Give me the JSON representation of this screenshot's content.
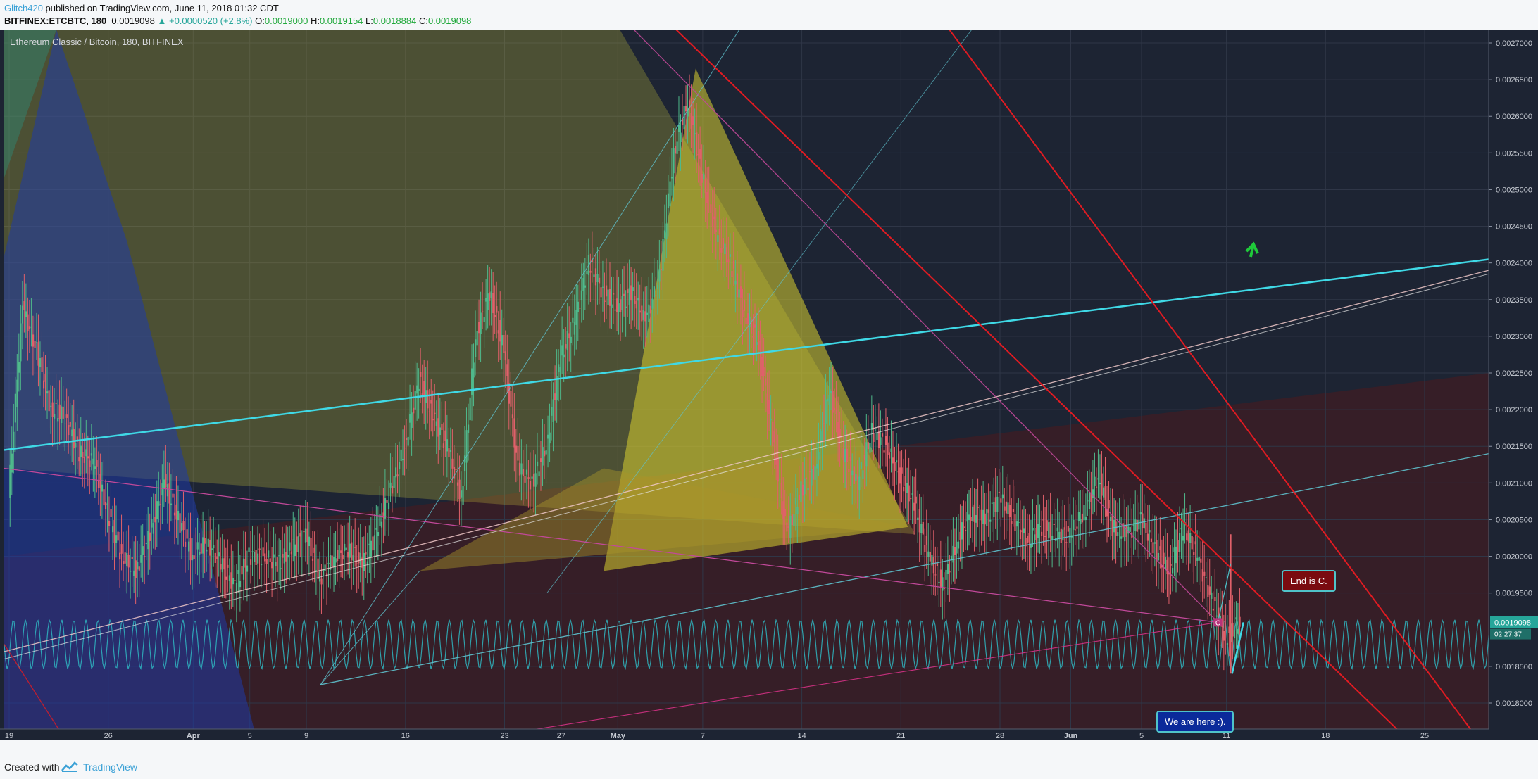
{
  "header": {
    "author": "Glitch420",
    "published_text": " published on TradingView.com, June 11, 2018 01:32 CDT",
    "symbol": "BITFINEX:ETCBTC, 180",
    "last": "0.0019098",
    "change": "▲ +0.0000520 (+2.8%)",
    "o_label": "O:",
    "o": "0.0019000",
    "h_label": "H:",
    "h": "0.0019154",
    "l_label": "L:",
    "l": "0.0018884",
    "c_label": "C:",
    "c": "0.0019098"
  },
  "footer": {
    "created": "Created with",
    "brand": "TradingView"
  },
  "annotations": {
    "end": "End is C.",
    "here": "We are here :).",
    "marker": "C"
  },
  "colors": {
    "background": "#1d2433",
    "up": "#4fb98b",
    "down": "#e0606a",
    "cyan": "#3fd9e6",
    "red": "#e11b22",
    "yellow": "#c9c23a",
    "accent_green": "#26a69a"
  },
  "chart_data": {
    "type": "candlestick",
    "title": "Ethereum Classic / Bitcoin, 180, BITFINEX",
    "ylim": [
      0.00175,
      0.00272
    ],
    "y_ticks": [
      "0.0027000",
      "0.0026500",
      "0.0026000",
      "0.0025500",
      "0.0025000",
      "0.0024500",
      "0.0024000",
      "0.0023500",
      "0.0023000",
      "0.0022500",
      "0.0022000",
      "0.0021500",
      "0.0021000",
      "0.0020500",
      "0.0020000",
      "0.0019500",
      "0.0018500",
      "0.0018000"
    ],
    "y_tick_values": [
      0.0027,
      0.00265,
      0.0026,
      0.00255,
      0.0025,
      0.00245,
      0.0024,
      0.00235,
      0.0023,
      0.00225,
      0.0022,
      0.00215,
      0.0021,
      0.00205,
      0.002,
      0.00195,
      0.00185,
      0.0018
    ],
    "x_ticks": [
      "19",
      "26",
      "Apr",
      "5",
      "9",
      "16",
      "23",
      "27",
      "May",
      "7",
      "14",
      "21",
      "28",
      "Jun",
      "5",
      "11",
      "18",
      "25"
    ],
    "x_tick_days": [
      0,
      7,
      13,
      17,
      21,
      28,
      35,
      39,
      43,
      49,
      56,
      63,
      70,
      75,
      80,
      86,
      93,
      100
    ],
    "last_price_label": "0.0019098",
    "countdown": "02:27:37",
    "price_path": [
      [
        0,
        0.00208
      ],
      [
        1,
        0.00234
      ],
      [
        2,
        0.00228
      ],
      [
        3,
        0.0022
      ],
      [
        4,
        0.00219
      ],
      [
        5,
        0.00214
      ],
      [
        6,
        0.00213
      ],
      [
        7,
        0.00206
      ],
      [
        8,
        0.002
      ],
      [
        9,
        0.00198
      ],
      [
        10,
        0.00203
      ],
      [
        11,
        0.0021
      ],
      [
        12,
        0.00205
      ],
      [
        13,
        0.002
      ],
      [
        14,
        0.00202
      ],
      [
        15,
        0.00199
      ],
      [
        16,
        0.00196
      ],
      [
        17,
        0.002
      ],
      [
        18,
        0.002
      ],
      [
        19,
        0.00199
      ],
      [
        20,
        0.00201
      ],
      [
        21,
        0.00203
      ],
      [
        22,
        0.00197
      ],
      [
        23,
        0.002
      ],
      [
        24,
        0.00201
      ],
      [
        25,
        0.00199
      ],
      [
        26,
        0.00203
      ],
      [
        27,
        0.00209
      ],
      [
        28,
        0.00215
      ],
      [
        29,
        0.00224
      ],
      [
        30,
        0.00219
      ],
      [
        31,
        0.00215
      ],
      [
        32,
        0.00208
      ],
      [
        33,
        0.0023
      ],
      [
        34,
        0.00236
      ],
      [
        35,
        0.00228
      ],
      [
        36,
        0.00212
      ],
      [
        37,
        0.0021
      ],
      [
        38,
        0.00215
      ],
      [
        39,
        0.00227
      ],
      [
        40,
        0.00232
      ],
      [
        41,
        0.0024
      ],
      [
        42,
        0.00236
      ],
      [
        43,
        0.00234
      ],
      [
        44,
        0.00236
      ],
      [
        45,
        0.00232
      ],
      [
        46,
        0.00238
      ],
      [
        47,
        0.00255
      ],
      [
        48,
        0.00262
      ],
      [
        49,
        0.00252
      ],
      [
        50,
        0.00244
      ],
      [
        51,
        0.0024
      ],
      [
        52,
        0.00233
      ],
      [
        53,
        0.00229
      ],
      [
        54,
        0.00216
      ],
      [
        55,
        0.00203
      ],
      [
        56,
        0.00209
      ],
      [
        57,
        0.00212
      ],
      [
        58,
        0.00223
      ],
      [
        59,
        0.00214
      ],
      [
        60,
        0.0021
      ],
      [
        61,
        0.00217
      ],
      [
        62,
        0.00215
      ],
      [
        63,
        0.00211
      ],
      [
        64,
        0.00207
      ],
      [
        65,
        0.002
      ],
      [
        66,
        0.00196
      ],
      [
        67,
        0.00202
      ],
      [
        68,
        0.00206
      ],
      [
        69,
        0.00205
      ],
      [
        70,
        0.00208
      ],
      [
        71,
        0.00205
      ],
      [
        72,
        0.00202
      ],
      [
        73,
        0.00204
      ],
      [
        74,
        0.00203
      ],
      [
        75,
        0.00203
      ],
      [
        76,
        0.00206
      ],
      [
        77,
        0.00211
      ],
      [
        78,
        0.00204
      ],
      [
        79,
        0.00203
      ],
      [
        80,
        0.00205
      ],
      [
        81,
        0.00201
      ],
      [
        82,
        0.00198
      ],
      [
        83,
        0.00204
      ],
      [
        84,
        0.002
      ],
      [
        85,
        0.00194
      ],
      [
        86,
        0.00189
      ],
      [
        87,
        0.00191
      ]
    ]
  }
}
